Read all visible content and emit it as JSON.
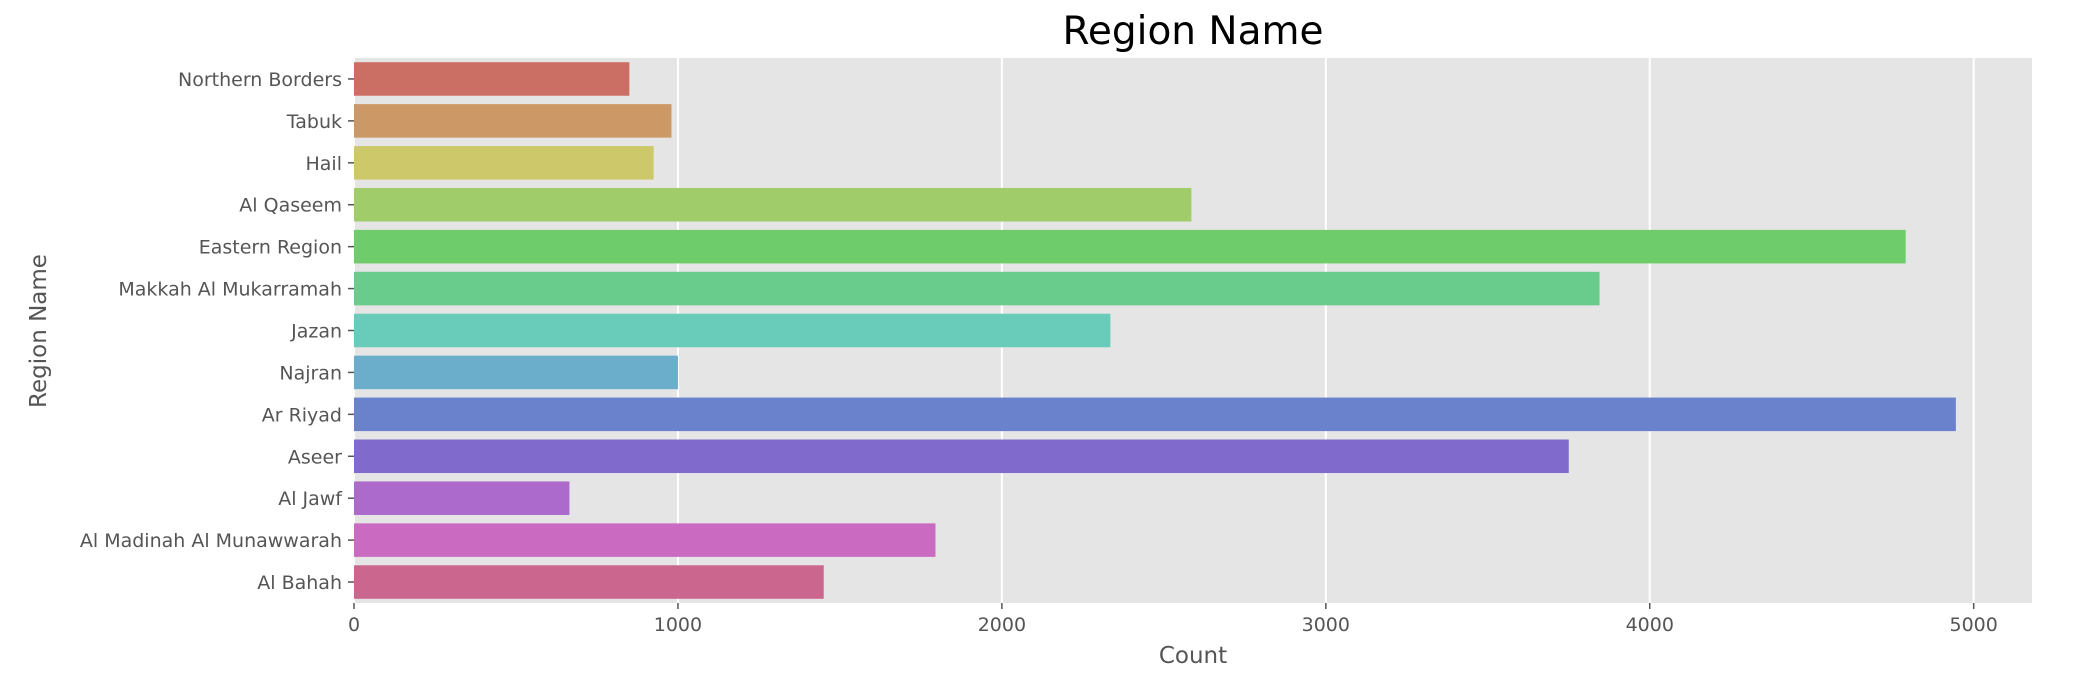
{
  "chart_data": {
    "type": "bar",
    "orientation": "horizontal",
    "title": "Region Name",
    "xlabel": "Count",
    "ylabel": "Region Name",
    "categories": [
      "Northern Borders",
      "Tabuk",
      "Hail",
      "Al Qaseem",
      "Eastern Region",
      "Makkah Al Mukarramah",
      "Jazan",
      "Najran",
      "Ar Riyad",
      "Aseer",
      "Al Jawf",
      "Al Madinah Al Munawwarah",
      "Al Bahah"
    ],
    "values": [
      850,
      980,
      925,
      2585,
      4790,
      3845,
      2335,
      1000,
      4945,
      3750,
      665,
      1795,
      1450
    ],
    "colors": [
      "#cb6e63",
      "#cc9966",
      "#cdc96b",
      "#a0cc6a",
      "#6ecc6a",
      "#69cc8c",
      "#69ccba",
      "#6aaecb",
      "#6a81cb",
      "#806acc",
      "#ab6acc",
      "#cb6ac1",
      "#cb678e"
    ],
    "xlim": [
      0,
      5180
    ],
    "xticks": [
      0,
      1000,
      2000,
      3000,
      4000,
      5000
    ],
    "grid": true,
    "legend": "none"
  }
}
